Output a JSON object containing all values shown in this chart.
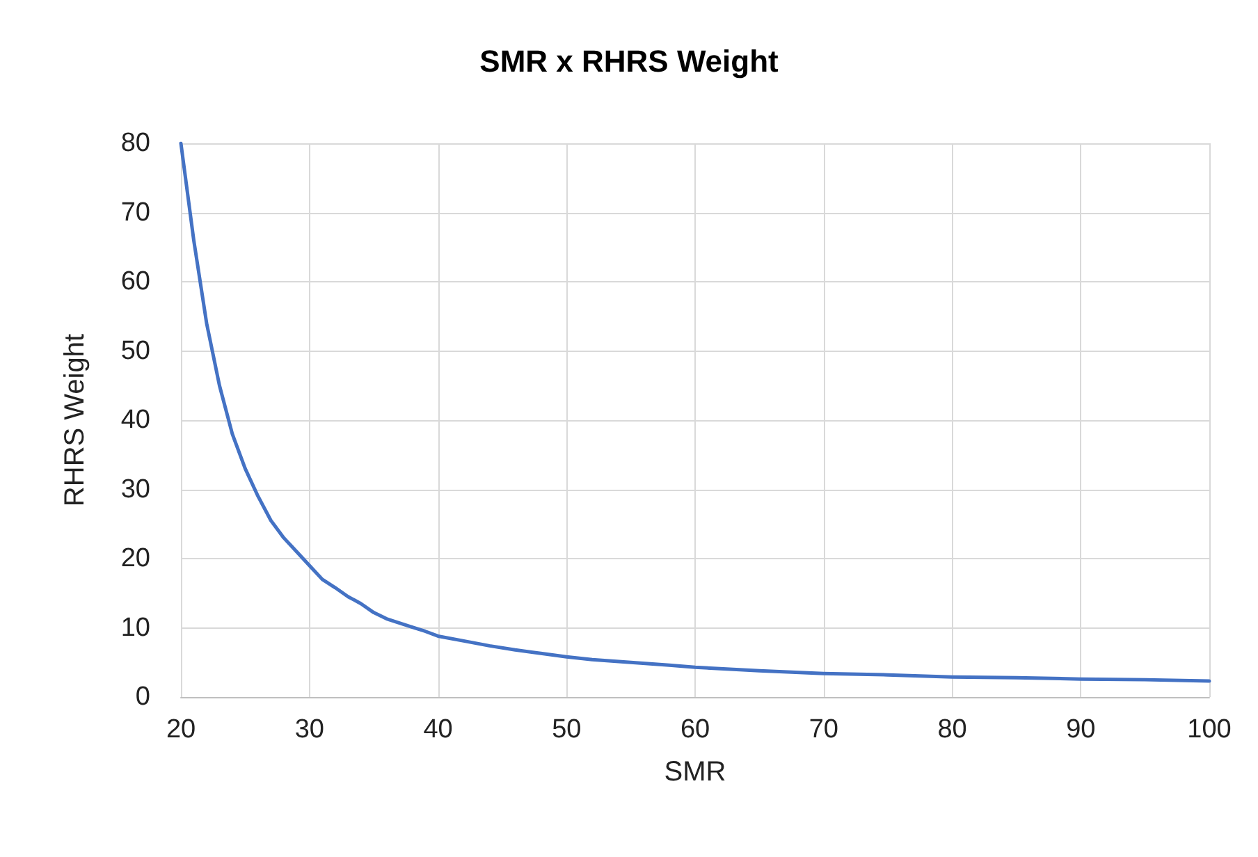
{
  "chart_data": {
    "type": "line",
    "title": "SMR x RHRS Weight",
    "xlabel": "SMR",
    "ylabel": "RHRS Weight",
    "x": [
      20,
      21,
      22,
      23,
      24,
      25,
      26,
      27,
      28,
      29,
      30,
      31,
      32,
      33,
      34,
      35,
      36,
      37,
      38,
      39,
      40,
      42,
      44,
      46,
      48,
      50,
      52,
      55,
      58,
      60,
      65,
      70,
      75,
      80,
      85,
      90,
      95,
      100
    ],
    "series": [
      {
        "color": "#4472c4",
        "values": [
          80,
          66,
          54,
          45,
          38,
          33,
          29,
          25.5,
          23,
          21,
          19,
          17,
          15.8,
          14.5,
          13.5,
          12.2,
          11.3,
          10.7,
          10.1,
          9.5,
          8.8,
          8.1,
          7.4,
          6.8,
          6.3,
          5.8,
          5.4,
          5,
          4.6,
          4.3,
          3.8,
          3.4,
          3.2,
          2.9,
          2.8,
          2.6,
          2.5,
          2.3
        ]
      }
    ],
    "xlim": [
      20,
      100
    ],
    "xticks": [
      20,
      30,
      40,
      50,
      60,
      70,
      80,
      90,
      100
    ],
    "ylim": [
      0,
      80
    ],
    "yticks": [
      0,
      10,
      20,
      30,
      40,
      50,
      60,
      70,
      80
    ],
    "grid": true,
    "marker": "none",
    "line_style": "solid"
  }
}
